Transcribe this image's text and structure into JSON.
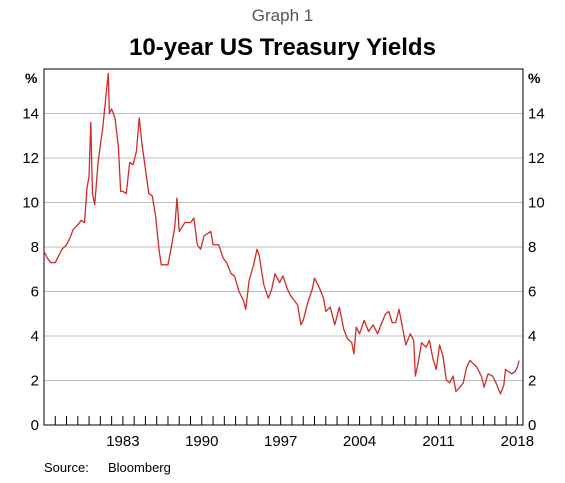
{
  "header": {
    "graph_label": "Graph 1",
    "title": "10-year US Treasury Yields"
  },
  "footer": {
    "source_label": "Source:",
    "source_value": "Bloomberg"
  },
  "colors": {
    "series": "#d42a2a",
    "grid": "#bdbdbd",
    "axis": "#000000"
  },
  "chart_data": {
    "type": "line",
    "title": "10-year US Treasury Yields",
    "xlabel": "",
    "ylabel": "%",
    "y_unit_left": "%",
    "y_unit_right": "%",
    "xlim": [
      1976,
      2018.5
    ],
    "ylim": [
      0,
      16
    ],
    "yticks": [
      0,
      2,
      4,
      6,
      8,
      10,
      12,
      14
    ],
    "xtick_labels": [
      1983,
      1990,
      1997,
      2004,
      2011,
      2018
    ],
    "minor_xticks_every_year": true,
    "grid": "horizontal",
    "series": [
      {
        "points": [
          [
            1976.0,
            7.8
          ],
          [
            1976.3,
            7.5
          ],
          [
            1976.6,
            7.3
          ],
          [
            1977.0,
            7.3
          ],
          [
            1977.3,
            7.6
          ],
          [
            1977.6,
            7.9
          ],
          [
            1978.0,
            8.1
          ],
          [
            1978.3,
            8.4
          ],
          [
            1978.6,
            8.8
          ],
          [
            1979.0,
            9.0
          ],
          [
            1979.3,
            9.2
          ],
          [
            1979.6,
            9.1
          ],
          [
            1979.8,
            10.6
          ],
          [
            1980.0,
            11.2
          ],
          [
            1980.15,
            13.6
          ],
          [
            1980.3,
            10.4
          ],
          [
            1980.5,
            9.9
          ],
          [
            1980.8,
            11.8
          ],
          [
            1981.0,
            12.6
          ],
          [
            1981.2,
            13.3
          ],
          [
            1981.4,
            14.3
          ],
          [
            1981.7,
            15.8
          ],
          [
            1981.8,
            14.0
          ],
          [
            1982.0,
            14.2
          ],
          [
            1982.3,
            13.8
          ],
          [
            1982.6,
            12.5
          ],
          [
            1982.8,
            10.5
          ],
          [
            1983.0,
            10.5
          ],
          [
            1983.3,
            10.4
          ],
          [
            1983.6,
            11.8
          ],
          [
            1983.9,
            11.7
          ],
          [
            1984.2,
            12.3
          ],
          [
            1984.45,
            13.8
          ],
          [
            1984.7,
            12.6
          ],
          [
            1985.0,
            11.5
          ],
          [
            1985.3,
            10.4
          ],
          [
            1985.6,
            10.3
          ],
          [
            1985.9,
            9.4
          ],
          [
            1986.2,
            7.9
          ],
          [
            1986.4,
            7.2
          ],
          [
            1986.7,
            7.2
          ],
          [
            1987.0,
            7.2
          ],
          [
            1987.3,
            8.0
          ],
          [
            1987.6,
            8.9
          ],
          [
            1987.8,
            10.2
          ],
          [
            1988.0,
            8.7
          ],
          [
            1988.5,
            9.1
          ],
          [
            1989.0,
            9.1
          ],
          [
            1989.3,
            9.3
          ],
          [
            1989.6,
            8.1
          ],
          [
            1989.9,
            7.9
          ],
          [
            1990.2,
            8.5
          ],
          [
            1990.5,
            8.6
          ],
          [
            1990.8,
            8.7
          ],
          [
            1991.0,
            8.1
          ],
          [
            1991.5,
            8.1
          ],
          [
            1991.9,
            7.5
          ],
          [
            1992.2,
            7.3
          ],
          [
            1992.6,
            6.8
          ],
          [
            1992.9,
            6.7
          ],
          [
            1993.3,
            6.0
          ],
          [
            1993.7,
            5.6
          ],
          [
            1993.9,
            5.2
          ],
          [
            1994.2,
            6.5
          ],
          [
            1994.6,
            7.2
          ],
          [
            1994.9,
            7.9
          ],
          [
            1995.1,
            7.6
          ],
          [
            1995.5,
            6.3
          ],
          [
            1995.9,
            5.7
          ],
          [
            1996.2,
            6.1
          ],
          [
            1996.5,
            6.8
          ],
          [
            1996.9,
            6.4
          ],
          [
            1997.2,
            6.7
          ],
          [
            1997.6,
            6.1
          ],
          [
            1997.9,
            5.8
          ],
          [
            1998.2,
            5.6
          ],
          [
            1998.5,
            5.4
          ],
          [
            1998.8,
            4.5
          ],
          [
            1999.0,
            4.7
          ],
          [
            1999.4,
            5.5
          ],
          [
            1999.8,
            6.1
          ],
          [
            2000.0,
            6.6
          ],
          [
            2000.4,
            6.2
          ],
          [
            2000.8,
            5.7
          ],
          [
            2001.0,
            5.1
          ],
          [
            2001.4,
            5.3
          ],
          [
            2001.8,
            4.5
          ],
          [
            2002.2,
            5.3
          ],
          [
            2002.6,
            4.3
          ],
          [
            2002.9,
            3.9
          ],
          [
            2003.3,
            3.7
          ],
          [
            2003.5,
            3.2
          ],
          [
            2003.7,
            4.4
          ],
          [
            2004.0,
            4.1
          ],
          [
            2004.4,
            4.7
          ],
          [
            2004.8,
            4.2
          ],
          [
            2005.2,
            4.5
          ],
          [
            2005.6,
            4.1
          ],
          [
            2005.9,
            4.5
          ],
          [
            2006.3,
            5.0
          ],
          [
            2006.6,
            5.1
          ],
          [
            2006.9,
            4.6
          ],
          [
            2007.2,
            4.6
          ],
          [
            2007.5,
            5.2
          ],
          [
            2007.8,
            4.4
          ],
          [
            2008.1,
            3.6
          ],
          [
            2008.5,
            4.1
          ],
          [
            2008.8,
            3.8
          ],
          [
            2008.95,
            2.2
          ],
          [
            2009.2,
            2.8
          ],
          [
            2009.5,
            3.7
          ],
          [
            2009.9,
            3.5
          ],
          [
            2010.2,
            3.8
          ],
          [
            2010.5,
            3.0
          ],
          [
            2010.8,
            2.5
          ],
          [
            2011.1,
            3.6
          ],
          [
            2011.4,
            3.1
          ],
          [
            2011.7,
            2.0
          ],
          [
            2012.0,
            1.9
          ],
          [
            2012.3,
            2.2
          ],
          [
            2012.55,
            1.5
          ],
          [
            2012.9,
            1.7
          ],
          [
            2013.2,
            1.9
          ],
          [
            2013.5,
            2.6
          ],
          [
            2013.8,
            2.9
          ],
          [
            2014.0,
            2.8
          ],
          [
            2014.4,
            2.6
          ],
          [
            2014.8,
            2.2
          ],
          [
            2015.05,
            1.7
          ],
          [
            2015.4,
            2.3
          ],
          [
            2015.8,
            2.2
          ],
          [
            2016.1,
            1.9
          ],
          [
            2016.5,
            1.4
          ],
          [
            2016.8,
            1.8
          ],
          [
            2016.95,
            2.5
          ],
          [
            2017.2,
            2.4
          ],
          [
            2017.5,
            2.3
          ],
          [
            2017.8,
            2.4
          ],
          [
            2018.0,
            2.6
          ],
          [
            2018.15,
            2.9
          ]
        ]
      }
    ]
  }
}
